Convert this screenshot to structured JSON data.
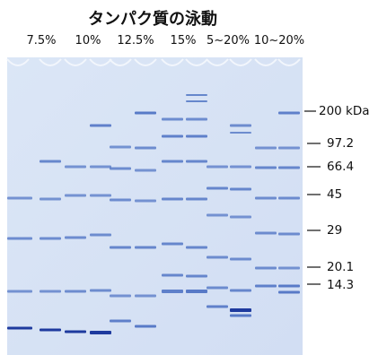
{
  "title": "タンパク質の泳動",
  "gel_columns": [
    {
      "label": "7.5%"
    },
    {
      "label": "10%"
    },
    {
      "label": "12.5%"
    },
    {
      "label": "15%"
    },
    {
      "label": "5~20%"
    },
    {
      "label": "10~20%"
    }
  ],
  "markers": [
    {
      "label": "200 kDa"
    },
    {
      "label": "97.2"
    },
    {
      "label": "66.4"
    },
    {
      "label": "45"
    },
    {
      "label": "29"
    },
    {
      "label": "20.1"
    },
    {
      "label": "14.3"
    }
  ],
  "colors": {
    "gel_background": "#d7e3f5",
    "band": "#4a6fc2",
    "band_dark": "#1e3a9e"
  }
}
